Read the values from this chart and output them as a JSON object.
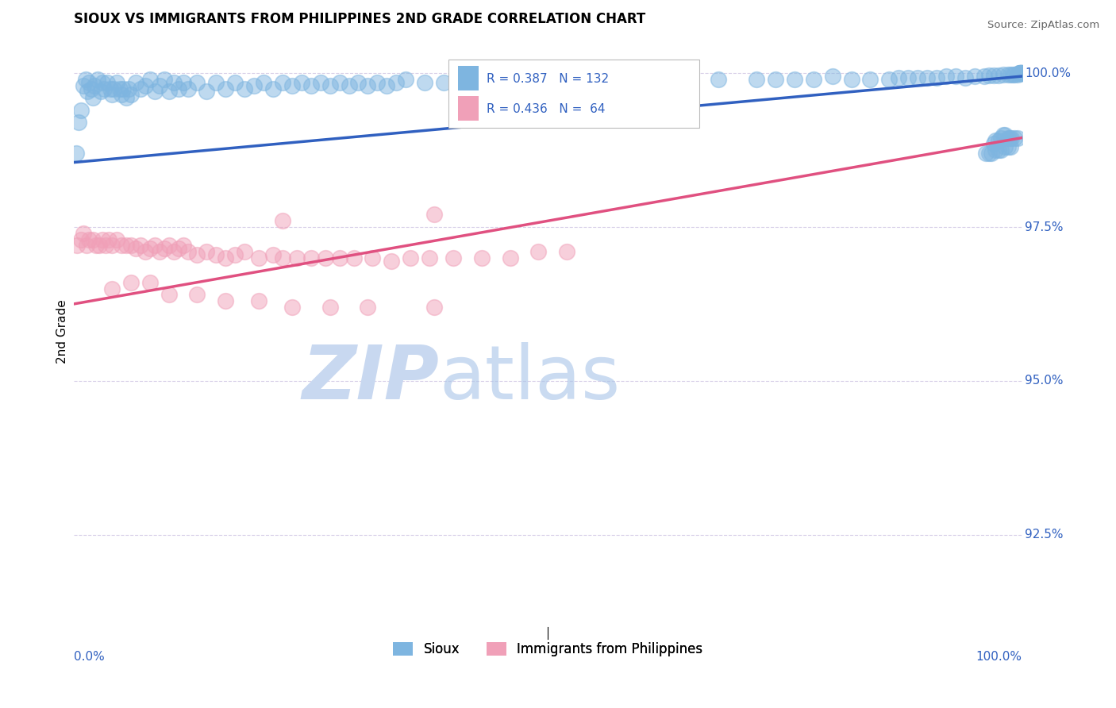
{
  "title": "SIOUX VS IMMIGRANTS FROM PHILIPPINES 2ND GRADE CORRELATION CHART",
  "source": "Source: ZipAtlas.com",
  "ylabel": "2nd Grade",
  "yticks": [
    "92.5%",
    "95.0%",
    "97.5%",
    "100.0%"
  ],
  "ytick_vals": [
    0.925,
    0.95,
    0.975,
    1.0
  ],
  "xlim": [
    0.0,
    1.0
  ],
  "ylim": [
    0.91,
    1.006
  ],
  "legend_blue_R": "R = 0.387",
  "legend_blue_N": "N = 132",
  "legend_pink_R": "R = 0.436",
  "legend_pink_N": "N =  64",
  "blue_color": "#7EB5E0",
  "pink_color": "#F0A0B8",
  "blue_line_color": "#3060C0",
  "pink_line_color": "#E05080",
  "watermark_zip": "ZIP",
  "watermark_atlas": "atlas",
  "watermark_color": "#C8D8F0",
  "background_color": "#FFFFFF",
  "grid_color": "#D8D0E8",
  "sioux_label": "Sioux",
  "immigrants_label": "Immigrants from Philippines",
  "blue_trend_x": [
    0.0,
    1.0
  ],
  "blue_trend_y": [
    0.9855,
    0.9995
  ],
  "pink_trend_x": [
    0.0,
    1.0
  ],
  "pink_trend_y": [
    0.9625,
    0.9895
  ],
  "blue_scatter_x": [
    0.002,
    0.005,
    0.007,
    0.01,
    0.012,
    0.014,
    0.016,
    0.018,
    0.02,
    0.022,
    0.025,
    0.028,
    0.03,
    0.032,
    0.035,
    0.038,
    0.04,
    0.042,
    0.045,
    0.048,
    0.05,
    0.052,
    0.055,
    0.058,
    0.06,
    0.065,
    0.07,
    0.075,
    0.08,
    0.085,
    0.09,
    0.095,
    0.1,
    0.105,
    0.11,
    0.115,
    0.12,
    0.13,
    0.14,
    0.15,
    0.16,
    0.17,
    0.18,
    0.19,
    0.2,
    0.21,
    0.22,
    0.23,
    0.24,
    0.25,
    0.26,
    0.27,
    0.28,
    0.29,
    0.3,
    0.31,
    0.32,
    0.33,
    0.34,
    0.35,
    0.37,
    0.39,
    0.41,
    0.43,
    0.45,
    0.48,
    0.51,
    0.54,
    0.6,
    0.64,
    0.68,
    0.72,
    0.74,
    0.76,
    0.78,
    0.8,
    0.82,
    0.84,
    0.86,
    0.87,
    0.88,
    0.89,
    0.9,
    0.91,
    0.92,
    0.93,
    0.94,
    0.95,
    0.96,
    0.965,
    0.97,
    0.975,
    0.98,
    0.985,
    0.988,
    0.99,
    0.992,
    0.995,
    0.997,
    0.999,
    1.0,
    0.997,
    0.999,
    0.998,
    0.999,
    1.0,
    0.999,
    0.999,
    1.0,
    0.999,
    0.97,
    0.972,
    0.975,
    0.978,
    0.98,
    0.982,
    0.985,
    0.987,
    0.989,
    0.992,
    0.995,
    0.962,
    0.965,
    0.968,
    0.972,
    0.975,
    0.978,
    0.982,
    0.985,
    0.988
  ],
  "blue_scatter_y": [
    0.987,
    0.992,
    0.994,
    0.998,
    0.999,
    0.997,
    0.9985,
    0.9975,
    0.996,
    0.998,
    0.999,
    0.997,
    0.9985,
    0.9975,
    0.9985,
    0.9975,
    0.9965,
    0.9975,
    0.9985,
    0.9975,
    0.9965,
    0.9975,
    0.996,
    0.9975,
    0.9965,
    0.9985,
    0.9975,
    0.998,
    0.999,
    0.997,
    0.998,
    0.999,
    0.997,
    0.9985,
    0.9975,
    0.9985,
    0.9975,
    0.9985,
    0.997,
    0.9985,
    0.9975,
    0.9985,
    0.9975,
    0.998,
    0.9985,
    0.9975,
    0.9985,
    0.998,
    0.9985,
    0.998,
    0.9985,
    0.998,
    0.9985,
    0.998,
    0.9985,
    0.998,
    0.9985,
    0.998,
    0.9985,
    0.999,
    0.9985,
    0.9985,
    0.999,
    0.998,
    0.999,
    0.9985,
    0.9985,
    0.9985,
    0.999,
    0.999,
    0.999,
    0.999,
    0.999,
    0.999,
    0.999,
    0.9995,
    0.999,
    0.999,
    0.999,
    0.9992,
    0.9993,
    0.9993,
    0.9993,
    0.9993,
    0.9995,
    0.9995,
    0.9993,
    0.9995,
    0.9995,
    0.9997,
    0.9997,
    0.9997,
    0.9998,
    0.9998,
    0.9998,
    0.9998,
    0.9998,
    0.9998,
    1.0,
    1.0,
    1.0,
    1.0,
    1.0,
    1.0,
    1.0,
    1.0,
    1.0,
    1.0,
    1.0,
    1.0,
    0.9885,
    0.989,
    0.989,
    0.9895,
    0.99,
    0.99,
    0.9895,
    0.9895,
    0.9895,
    0.9895,
    0.9895,
    0.987,
    0.987,
    0.987,
    0.9875,
    0.9875,
    0.9875,
    0.988,
    0.988,
    0.988
  ],
  "pink_scatter_x": [
    0.003,
    0.007,
    0.01,
    0.013,
    0.016,
    0.02,
    0.023,
    0.027,
    0.03,
    0.033,
    0.037,
    0.04,
    0.045,
    0.05,
    0.055,
    0.06,
    0.065,
    0.07,
    0.075,
    0.08,
    0.085,
    0.09,
    0.095,
    0.1,
    0.105,
    0.11,
    0.115,
    0.12,
    0.13,
    0.14,
    0.15,
    0.16,
    0.17,
    0.18,
    0.195,
    0.21,
    0.22,
    0.235,
    0.25,
    0.265,
    0.28,
    0.295,
    0.315,
    0.335,
    0.355,
    0.375,
    0.4,
    0.43,
    0.46,
    0.49,
    0.52,
    0.22,
    0.38,
    0.04,
    0.06,
    0.08,
    0.1,
    0.13,
    0.16,
    0.195,
    0.23,
    0.27,
    0.31,
    0.38
  ],
  "pink_scatter_y": [
    0.972,
    0.973,
    0.974,
    0.972,
    0.973,
    0.973,
    0.972,
    0.972,
    0.973,
    0.972,
    0.973,
    0.972,
    0.973,
    0.972,
    0.972,
    0.972,
    0.9715,
    0.972,
    0.971,
    0.9715,
    0.972,
    0.971,
    0.9715,
    0.972,
    0.971,
    0.9715,
    0.972,
    0.971,
    0.9705,
    0.971,
    0.9705,
    0.97,
    0.9705,
    0.971,
    0.97,
    0.9705,
    0.97,
    0.97,
    0.97,
    0.97,
    0.97,
    0.97,
    0.97,
    0.9695,
    0.97,
    0.97,
    0.97,
    0.97,
    0.97,
    0.971,
    0.971,
    0.976,
    0.977,
    0.965,
    0.966,
    0.966,
    0.964,
    0.964,
    0.963,
    0.963,
    0.962,
    0.962,
    0.962,
    0.962
  ]
}
